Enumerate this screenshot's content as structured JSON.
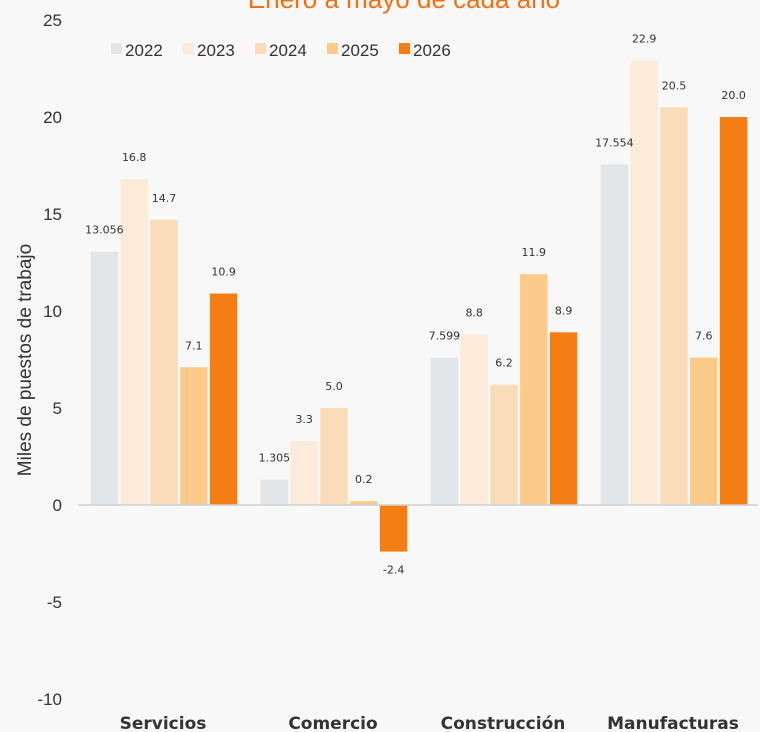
{
  "chart_data": {
    "type": "bar",
    "title": "Enero a mayo de cada año",
    "ylabel": "Miles de puestos de trabajo",
    "xlabel": "",
    "ylim": [
      -10,
      25
    ],
    "yticks": [
      "25",
      "20",
      "15",
      "10",
      "5",
      "0",
      "-5",
      "-10"
    ],
    "categories": [
      "Servicios",
      "Comercio",
      "Construcción",
      "Manufacturas"
    ],
    "legend_position": "top-left",
    "grid": false,
    "series": [
      {
        "name": "2022",
        "color": "#e2e6e8",
        "values": [
          13.056,
          1.305,
          7.599,
          17.554
        ],
        "labels": [
          "13.056",
          "1.305",
          "7.599",
          "17.554"
        ]
      },
      {
        "name": "2023",
        "color": "#fdebd9",
        "values": [
          16.8,
          3.3,
          8.8,
          22.9
        ],
        "labels": [
          "16.8",
          "3.3",
          "8.8",
          "22.9"
        ]
      },
      {
        "name": "2024",
        "color": "#fbdcb8",
        "values": [
          14.7,
          5.0,
          6.2,
          20.5
        ],
        "labels": [
          "14.7",
          "5.0",
          "6.2",
          "20.5"
        ]
      },
      {
        "name": "2025",
        "color": "#fccb8c",
        "values": [
          7.1,
          0.2,
          11.9,
          7.6
        ],
        "labels": [
          "7.1",
          "0.2",
          "11.9",
          "7.6"
        ]
      },
      {
        "name": "2026",
        "color": "#f47d14",
        "values": [
          10.9,
          -2.4,
          8.9,
          20.0
        ],
        "labels": [
          "10.9",
          "-2.4",
          "8.9",
          "20.0"
        ]
      }
    ]
  }
}
